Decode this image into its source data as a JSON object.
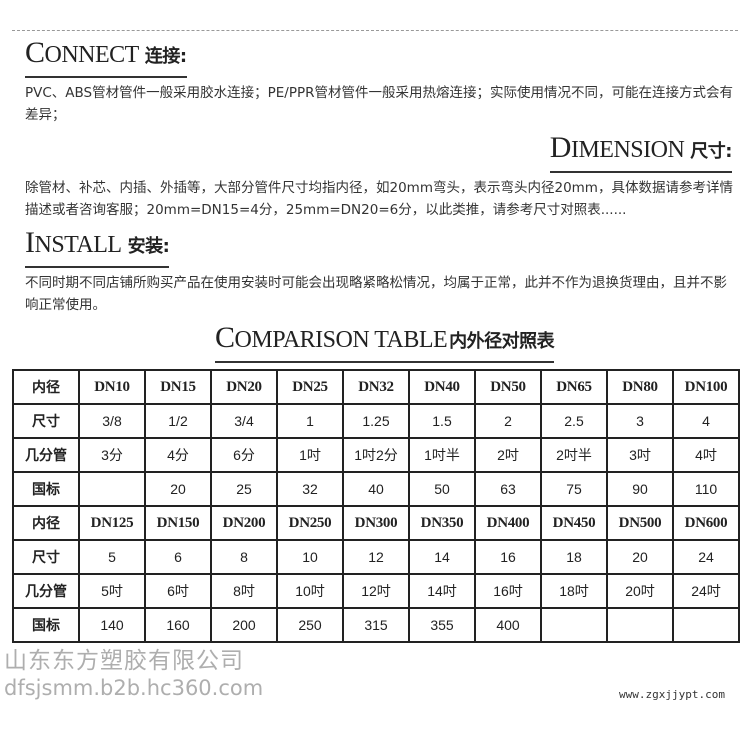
{
  "connect": {
    "title_en": "Connect",
    "title_cn": "连接:",
    "text": "PVC、ABS管材管件一般采用胶水连接；PE/PPR管材管件一般采用热熔连接；实际使用情况不同，可能在连接方式会有差异；"
  },
  "dimension": {
    "title_en": "Dimension",
    "title_cn": "尺寸:",
    "text": "除管材、补芯、内插、外插等，大部分管件尺寸均指内径，如20mm弯头，表示弯头内径20mm，具体数据请参考详情描述或者咨询客服；20mm=DN15=4分，25mm=DN20=6分，以此类推，请参考尺寸对照表......"
  },
  "install": {
    "title_en": "Install",
    "title_cn": "安装:",
    "text": "不同时期不同店铺所购买产品在使用安装时可能会出现略紧略松情况，均属于正常，此并不作为退换货理由，且并不影响正常使用。"
  },
  "table_title": {
    "en": "Comparison table",
    "cn": "内外径对照表"
  },
  "table": [
    [
      "内径",
      "DN10",
      "DN15",
      "DN20",
      "DN25",
      "DN32",
      "DN40",
      "DN50",
      "DN65",
      "DN80",
      "DN100"
    ],
    [
      "尺寸",
      "3/8",
      "1/2",
      "3/4",
      "1",
      "1.25",
      "1.5",
      "2",
      "2.5",
      "3",
      "4"
    ],
    [
      "几分管",
      "3分",
      "4分",
      "6分",
      "1吋",
      "1吋2分",
      "1吋半",
      "2吋",
      "2吋半",
      "3吋",
      "4吋"
    ],
    [
      "国标",
      "",
      "20",
      "25",
      "32",
      "40",
      "50",
      "63",
      "75",
      "90",
      "110"
    ],
    [
      "内径",
      "DN125",
      "DN150",
      "DN200",
      "DN250",
      "DN300",
      "DN350",
      "DN400",
      "DN450",
      "DN500",
      "DN600"
    ],
    [
      "尺寸",
      "5",
      "6",
      "8",
      "10",
      "12",
      "14",
      "16",
      "18",
      "20",
      "24"
    ],
    [
      "几分管",
      "5吋",
      "6吋",
      "8吋",
      "10吋",
      "12吋",
      "14吋",
      "16吋",
      "18吋",
      "20吋",
      "24吋"
    ],
    [
      "国标",
      "140",
      "160",
      "200",
      "250",
      "315",
      "355",
      "400",
      "",
      "",
      ""
    ]
  ],
  "watermark": {
    "company": "山东东方塑胶有限公司",
    "url": "dfsjsmm.b2b.hc360.com",
    "site": "www.zgxjjypt.com"
  }
}
